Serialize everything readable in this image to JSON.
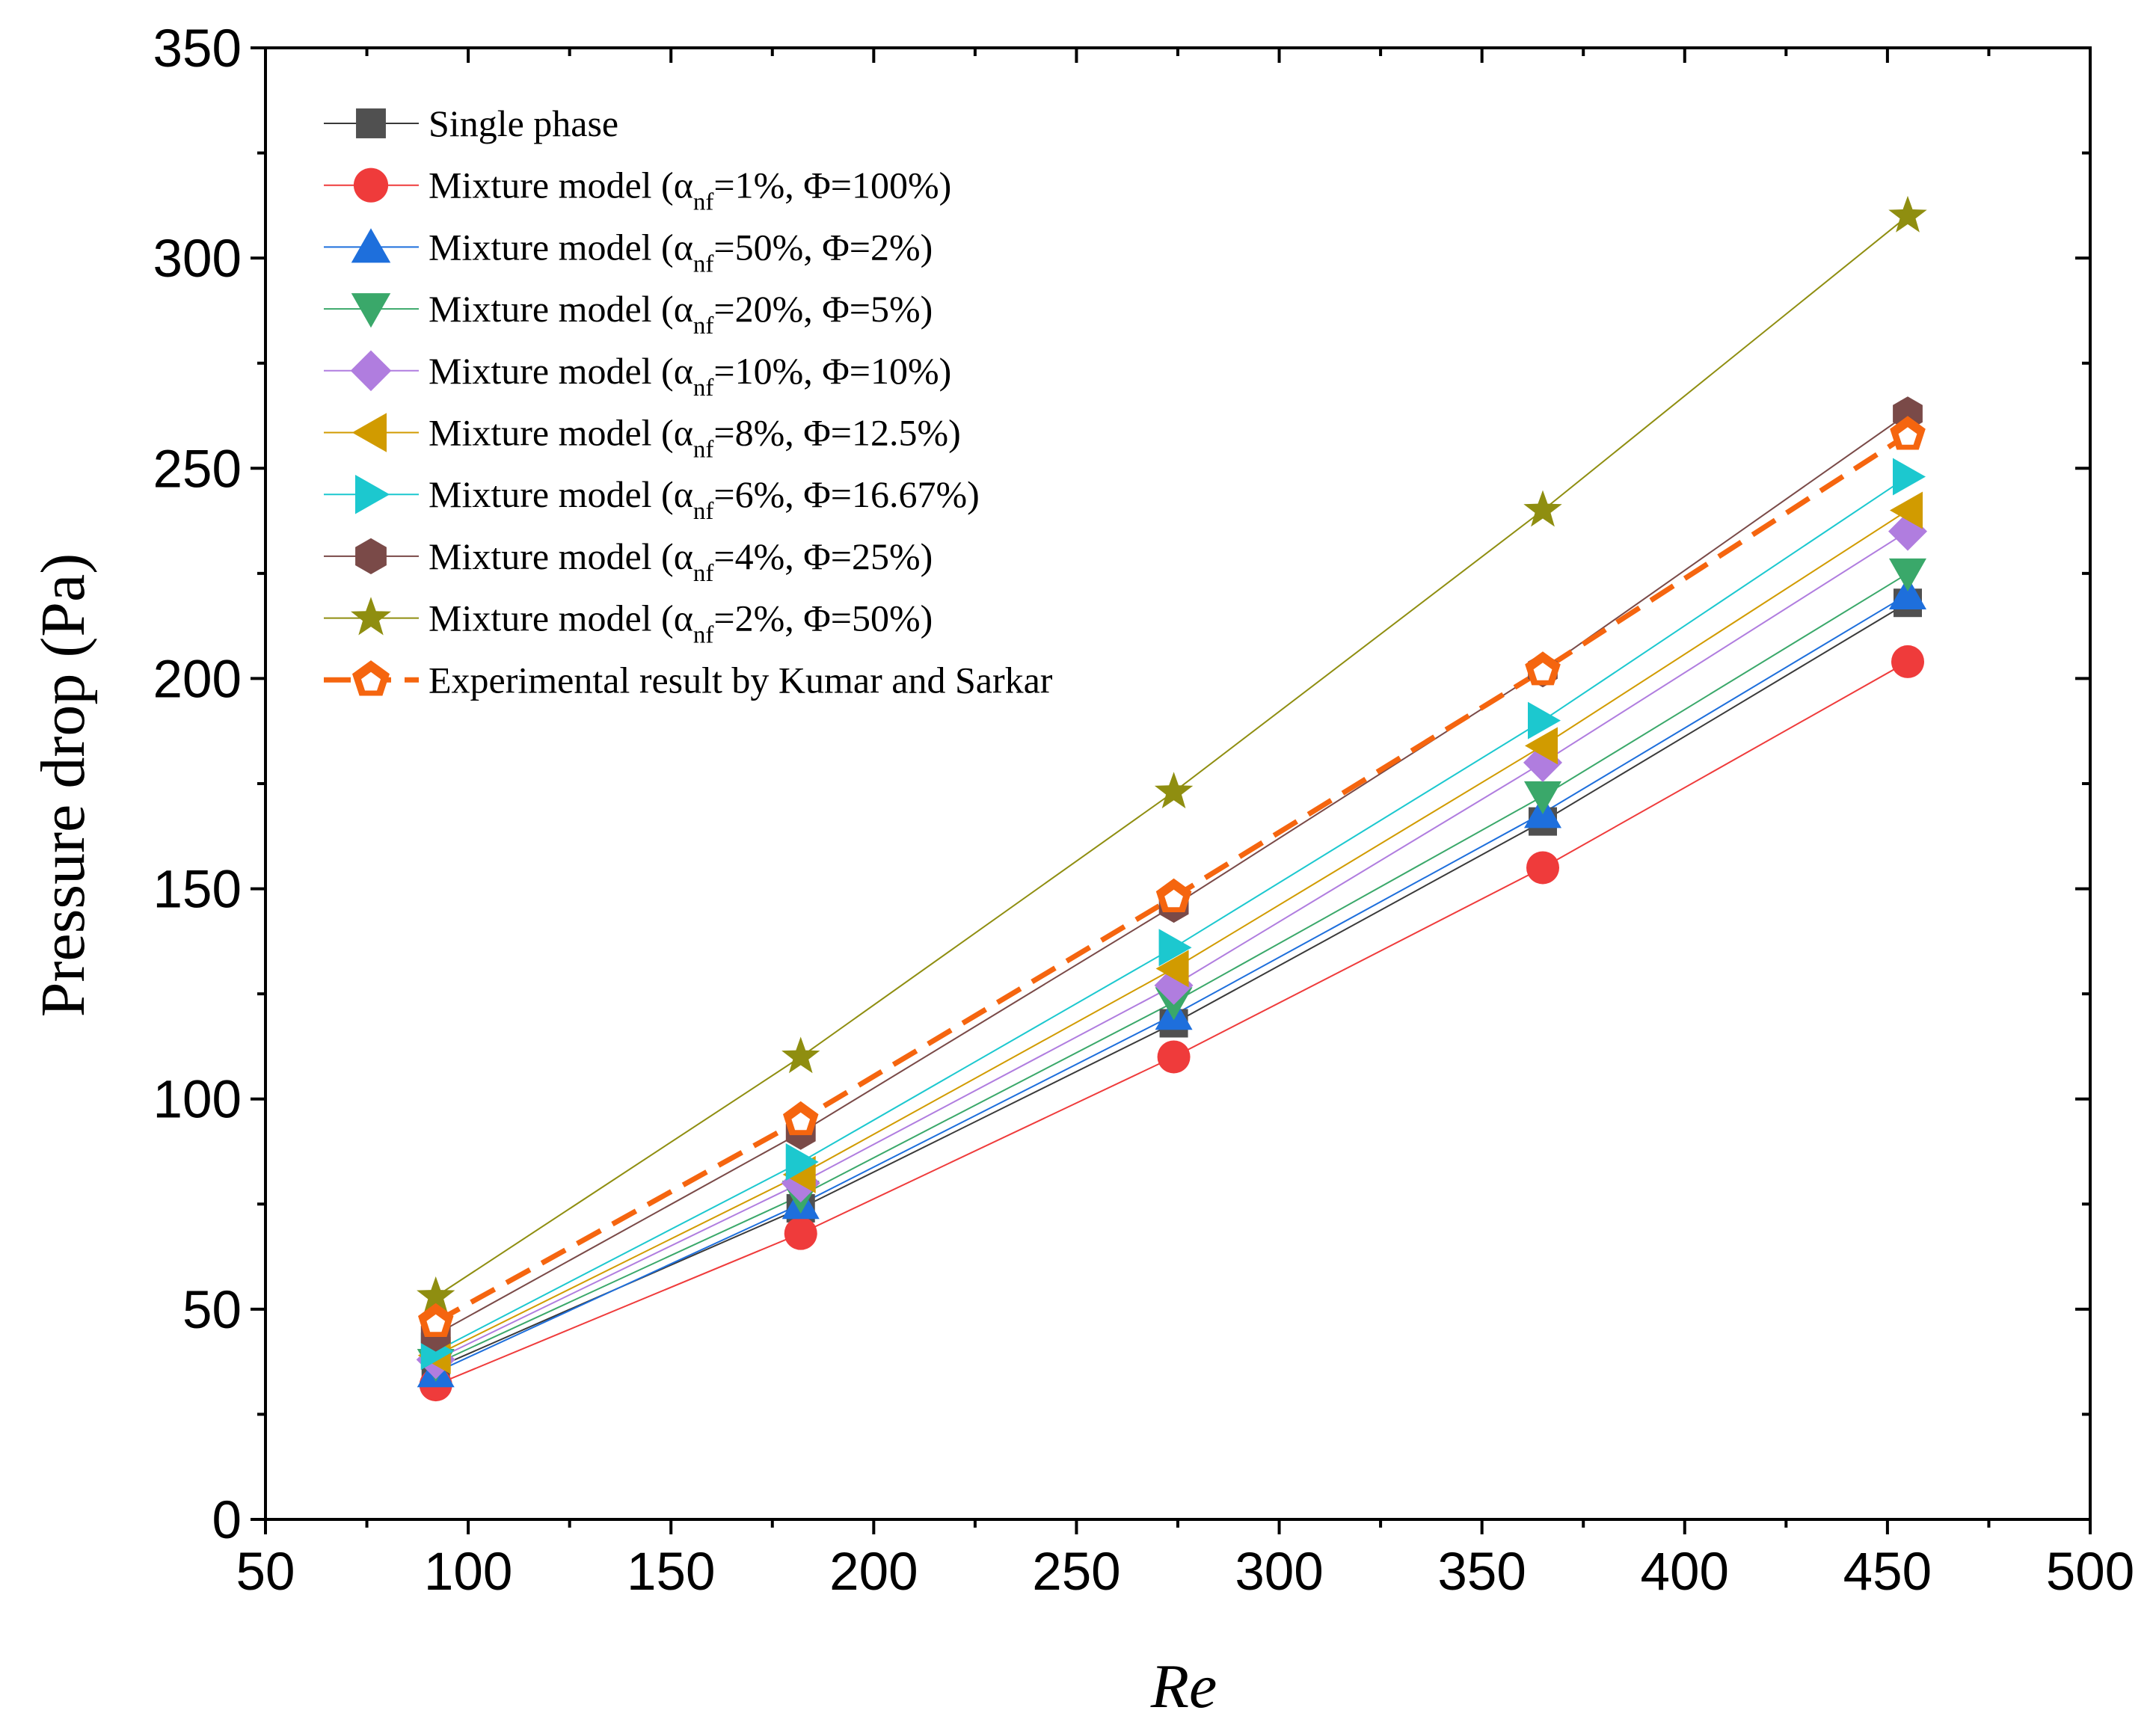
{
  "chart_data": {
    "type": "line",
    "xlabel": "Re",
    "ylabel": "Pressure drop (Pa)",
    "xlim": [
      50,
      500
    ],
    "ylim": [
      0,
      350
    ],
    "x_ticks": [
      "50",
      "100",
      "150",
      "200",
      "250",
      "300",
      "350",
      "400",
      "450",
      "500"
    ],
    "y_ticks": [
      "0",
      "50",
      "100",
      "150",
      "200",
      "250",
      "300",
      "350"
    ],
    "grid": false,
    "legend_position": "top-left",
    "x": [
      92,
      182,
      274,
      365,
      455
    ],
    "series": [
      {
        "name": "Single phase",
        "label_main": "Single phase",
        "label_sub": "",
        "label_tail": "",
        "marker": "square",
        "color": "#505050",
        "line_color": "#3a3a3a",
        "dashed": false,
        "values": [
          36,
          74,
          118,
          166,
          218
        ]
      },
      {
        "name": "Mixture model (αnf=1%, Φ=100%)",
        "label_main": "Mixture model (α",
        "label_sub": "nf",
        "label_tail": "=1%, Φ=100%)",
        "marker": "circle",
        "color": "#ef3b3b",
        "line_color": "#ef3b3b",
        "dashed": false,
        "values": [
          32,
          68,
          110,
          155,
          204
        ]
      },
      {
        "name": "Mixture model (αnf=50%, Φ=2%)",
        "label_main": "Mixture model (α",
        "label_sub": "nf",
        "label_tail": "=50%, Φ=2%)",
        "marker": "triangle-up",
        "color": "#1e6fdc",
        "line_color": "#1e6fdc",
        "dashed": false,
        "values": [
          35,
          75,
          120,
          168,
          220
        ]
      },
      {
        "name": "Mixture model (αnf=20%, Φ=5%)",
        "label_main": "Mixture model (α",
        "label_sub": "nf",
        "label_tail": "=20%, Φ=5%)",
        "marker": "triangle-down",
        "color": "#3aa86a",
        "line_color": "#3aa86a",
        "dashed": false,
        "values": [
          37,
          77,
          123,
          172,
          225
        ]
      },
      {
        "name": "Mixture model (αnf=10%, Φ=10%)",
        "label_main": "Mixture model (α",
        "label_sub": "nf",
        "label_tail": "=10%, Φ=10%)",
        "marker": "diamond",
        "color": "#b07ddf",
        "line_color": "#b07ddf",
        "dashed": false,
        "values": [
          38,
          80,
          127,
          180,
          235
        ]
      },
      {
        "name": "Mixture model (αnf=8%, Φ=12.5%)",
        "label_main": "Mixture model (α",
        "label_sub": "nf",
        "label_tail": "=8%, Φ=12.5%)",
        "marker": "triangle-left",
        "color": "#d19b00",
        "line_color": "#d19b00",
        "dashed": false,
        "values": [
          39,
          82,
          131,
          184,
          240
        ]
      },
      {
        "name": "Mixture model (αnf=6%, Φ=16.67%)",
        "label_main": "Mixture model (α",
        "label_sub": "nf",
        "label_tail": "=6%, Φ=16.67%)",
        "marker": "triangle-right",
        "color": "#1cc8cf",
        "line_color": "#1cc8cf",
        "dashed": false,
        "values": [
          40,
          85,
          136,
          190,
          248
        ]
      },
      {
        "name": "Mixture model (αnf=4%, Φ=25%)",
        "label_main": "Mixture model (α",
        "label_sub": "nf",
        "label_tail": "=4%, Φ=25%)",
        "marker": "hexagon",
        "color": "#7a4a48",
        "line_color": "#7a4a48",
        "dashed": false,
        "values": [
          44,
          92,
          146,
          202,
          263
        ]
      },
      {
        "name": "Mixture model (αnf=2%, Φ=50%)",
        "label_main": "Mixture model (α",
        "label_sub": "nf",
        "label_tail": "=2%, Φ=50%)",
        "marker": "star",
        "color": "#8f8e10",
        "line_color": "#8f8e10",
        "dashed": false,
        "values": [
          53,
          110,
          173,
          240,
          310
        ]
      },
      {
        "name": "Experimental result by Kumar and Sarkar",
        "label_main": "Experimental result by Kumar and Sarkar",
        "label_sub": "",
        "label_tail": "",
        "marker": "pentagon-open",
        "color": "#f5650f",
        "line_color": "#f5650f",
        "dashed": true,
        "values": [
          47,
          95,
          148,
          202,
          258
        ]
      }
    ]
  }
}
